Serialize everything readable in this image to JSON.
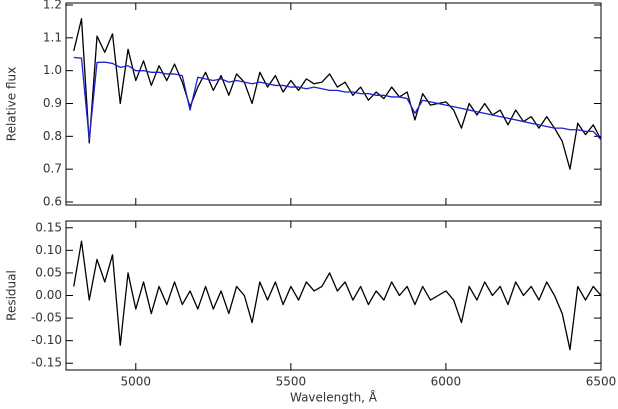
{
  "chart_data": [
    {
      "type": "line",
      "ylabel": "Relative flux",
      "x": [
        4800,
        4825,
        4850,
        4875,
        4900,
        4925,
        4950,
        4975,
        5000,
        5025,
        5050,
        5075,
        5100,
        5125,
        5150,
        5175,
        5200,
        5225,
        5250,
        5275,
        5300,
        5325,
        5350,
        5375,
        5400,
        5425,
        5450,
        5475,
        5500,
        5525,
        5550,
        5575,
        5600,
        5625,
        5650,
        5675,
        5700,
        5725,
        5750,
        5775,
        5800,
        5825,
        5850,
        5875,
        5900,
        5925,
        5950,
        5975,
        6000,
        6025,
        6050,
        6075,
        6100,
        6125,
        6150,
        6175,
        6200,
        6225,
        6250,
        6275,
        6300,
        6325,
        6350,
        6375,
        6400,
        6425,
        6450,
        6475,
        6500
      ],
      "series": [
        {
          "color": "#000000",
          "values": [
            1.06,
            1.158,
            0.78,
            1.105,
            1.056,
            1.112,
            0.9,
            1.065,
            0.97,
            1.03,
            0.955,
            1.015,
            0.97,
            1.02,
            0.965,
            0.89,
            0.95,
            0.995,
            0.94,
            0.985,
            0.925,
            0.99,
            0.965,
            0.9,
            0.995,
            0.95,
            0.985,
            0.935,
            0.97,
            0.94,
            0.975,
            0.96,
            0.965,
            0.99,
            0.95,
            0.965,
            0.925,
            0.95,
            0.91,
            0.935,
            0.915,
            0.95,
            0.92,
            0.935,
            0.85,
            0.93,
            0.895,
            0.9,
            0.905,
            0.88,
            0.825,
            0.9,
            0.865,
            0.9,
            0.865,
            0.88,
            0.835,
            0.88,
            0.845,
            0.86,
            0.825,
            0.86,
            0.825,
            0.785,
            0.7,
            0.84,
            0.805,
            0.835,
            0.79
          ]
        },
        {
          "color": "#1f1fd0",
          "values": [
            1.04,
            1.038,
            0.79,
            1.025,
            1.026,
            1.022,
            1.01,
            1.015,
            1.0,
            1.0,
            0.995,
            0.995,
            0.99,
            0.99,
            0.985,
            0.88,
            0.98,
            0.975,
            0.97,
            0.975,
            0.965,
            0.97,
            0.965,
            0.96,
            0.965,
            0.96,
            0.955,
            0.955,
            0.95,
            0.95,
            0.945,
            0.95,
            0.945,
            0.94,
            0.94,
            0.935,
            0.935,
            0.93,
            0.93,
            0.925,
            0.925,
            0.92,
            0.92,
            0.915,
            0.87,
            0.91,
            0.905,
            0.9,
            0.895,
            0.89,
            0.885,
            0.88,
            0.875,
            0.87,
            0.865,
            0.86,
            0.855,
            0.85,
            0.845,
            0.84,
            0.835,
            0.83,
            0.825,
            0.825,
            0.82,
            0.82,
            0.815,
            0.815,
            0.79
          ]
        }
      ],
      "xlim": [
        4775,
        6500
      ],
      "xticks": [
        5000,
        5500,
        6000,
        6500
      ],
      "ylim": [
        0.6,
        1.2
      ],
      "yticks": [
        0.6,
        0.7,
        0.8,
        0.9,
        {
          "value": 1.0,
          "label": "1.0"
        },
        1.1,
        1.2
      ]
    },
    {
      "type": "line",
      "ylabel": "Residual",
      "xlabel": "Wavelength, Å",
      "x": [
        4800,
        4825,
        4850,
        4875,
        4900,
        4925,
        4950,
        4975,
        5000,
        5025,
        5050,
        5075,
        5100,
        5125,
        5150,
        5175,
        5200,
        5225,
        5250,
        5275,
        5300,
        5325,
        5350,
        5375,
        5400,
        5425,
        5450,
        5475,
        5500,
        5525,
        5550,
        5575,
        5600,
        5625,
        5650,
        5675,
        5700,
        5725,
        5750,
        5775,
        5800,
        5825,
        5850,
        5875,
        5900,
        5925,
        5950,
        5975,
        6000,
        6025,
        6050,
        6075,
        6100,
        6125,
        6150,
        6175,
        6200,
        6225,
        6250,
        6275,
        6300,
        6325,
        6350,
        6375,
        6400,
        6425,
        6450,
        6475,
        6500
      ],
      "series": [
        {
          "color": "#000000",
          "values": [
            0.02,
            0.12,
            -0.01,
            0.08,
            0.03,
            0.09,
            -0.11,
            0.05,
            -0.03,
            0.03,
            -0.04,
            0.02,
            -0.02,
            0.03,
            -0.02,
            0.01,
            -0.03,
            0.02,
            -0.03,
            0.01,
            -0.04,
            0.02,
            0.0,
            -0.06,
            0.03,
            -0.01,
            0.03,
            -0.02,
            0.02,
            -0.01,
            0.03,
            0.01,
            0.02,
            0.05,
            0.01,
            0.03,
            -0.01,
            0.02,
            -0.02,
            0.01,
            -0.01,
            0.03,
            0.0,
            0.02,
            -0.02,
            0.02,
            -0.01,
            0.0,
            0.01,
            -0.01,
            -0.06,
            0.02,
            -0.01,
            0.03,
            0.0,
            0.02,
            -0.02,
            0.03,
            0.0,
            0.02,
            -0.01,
            0.03,
            0.0,
            -0.04,
            -0.12,
            0.02,
            -0.01,
            0.02,
            0.0
          ]
        }
      ],
      "xlim": [
        4775,
        6500
      ],
      "xticks": [
        5000,
        5500,
        6000,
        6500
      ],
      "ylim": [
        -0.165,
        0.165
      ],
      "yticks": [
        0.15,
        {
          "value": 0.1,
          "label": "0.10"
        },
        0.05,
        {
          "value": 0.0,
          "label": "0.00"
        },
        -0.05,
        {
          "value": -0.1,
          "label": "-0.10"
        },
        -0.15
      ]
    }
  ]
}
